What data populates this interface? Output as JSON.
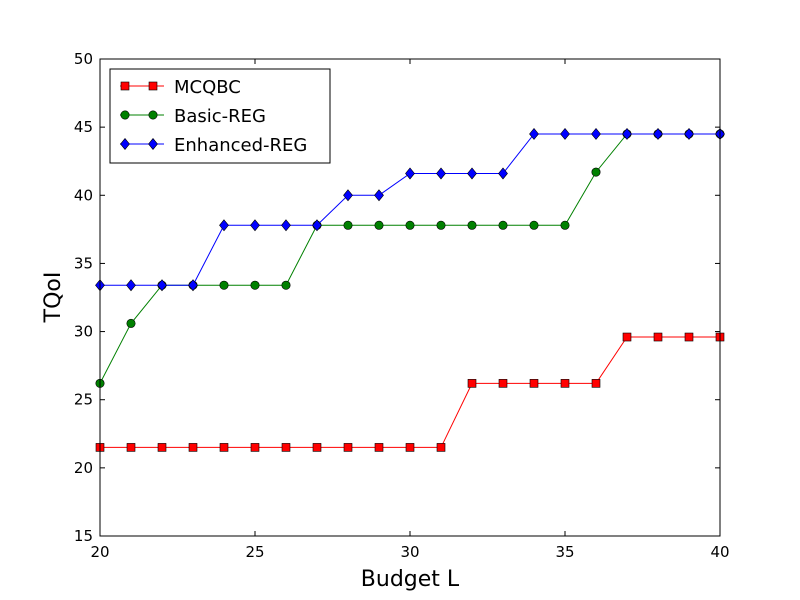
{
  "chart_data": {
    "type": "line",
    "xlabel": "Budget L",
    "ylabel": "TQoI",
    "xlim": [
      20,
      40
    ],
    "ylim": [
      15,
      50
    ],
    "x_ticks": [
      20,
      25,
      30,
      35,
      40
    ],
    "y_ticks": [
      15,
      20,
      25,
      30,
      35,
      40,
      45,
      50
    ],
    "grid": false,
    "legend_position": "top-left",
    "x": [
      20,
      21,
      22,
      23,
      24,
      25,
      26,
      27,
      28,
      29,
      30,
      31,
      32,
      33,
      34,
      35,
      36,
      37,
      38,
      39,
      40
    ],
    "series": [
      {
        "name": "MCQBC",
        "color": "#ff0000",
        "marker": "square",
        "values": [
          21.5,
          21.5,
          21.5,
          21.5,
          21.5,
          21.5,
          21.5,
          21.5,
          21.5,
          21.5,
          21.5,
          21.5,
          26.2,
          26.2,
          26.2,
          26.2,
          26.2,
          29.6,
          29.6,
          29.6,
          29.6
        ]
      },
      {
        "name": "Basic-REG",
        "color": "#008000",
        "marker": "circle",
        "values": [
          26.2,
          30.6,
          33.4,
          33.4,
          33.4,
          33.4,
          33.4,
          37.8,
          37.8,
          37.8,
          37.8,
          37.8,
          37.8,
          37.8,
          37.8,
          37.8,
          41.7,
          44.5,
          44.5,
          44.5,
          44.5
        ]
      },
      {
        "name": "Enhanced-REG",
        "color": "#0000ff",
        "marker": "diamond",
        "values": [
          33.4,
          33.4,
          33.4,
          33.4,
          37.8,
          37.8,
          37.8,
          37.8,
          40.0,
          40.0,
          41.6,
          41.6,
          41.6,
          41.6,
          44.5,
          44.5,
          44.5,
          44.5,
          44.5,
          44.5,
          44.5
        ]
      }
    ]
  }
}
